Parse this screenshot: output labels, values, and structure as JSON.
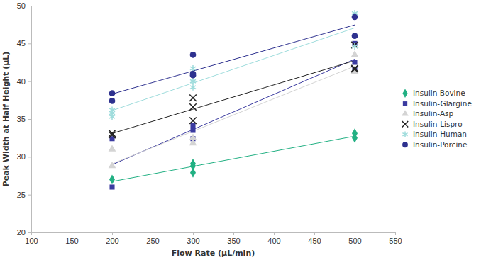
{
  "chart_data": {
    "type": "scatter",
    "x_label": "Flow Rate (µL/min)",
    "y_label": "Peak Width at Half Height (µL)",
    "xlim": [
      100,
      550
    ],
    "xticks": [
      100,
      150,
      200,
      250,
      300,
      350,
      400,
      450,
      500,
      550
    ],
    "ylim": [
      20,
      50
    ],
    "yticks": [
      20,
      25,
      30,
      35,
      40,
      45,
      50
    ],
    "grid": false,
    "legend": "right",
    "series": [
      {
        "name": "Insulin-Bovine",
        "color": "#22b083",
        "marker": "diamond",
        "line_style": "trend",
        "x": [
          200,
          300,
          300,
          300,
          500,
          500
        ],
        "values": [
          27.0,
          29.1,
          28.8,
          27.9,
          33.1,
          32.5
        ]
      },
      {
        "name": "Insulin-Glargine",
        "color": "#3b3ba0",
        "marker": "square",
        "line_style": "trend",
        "x": [
          200,
          200,
          300,
          300,
          300,
          500,
          500,
          500
        ],
        "values": [
          32.4,
          26.0,
          34.2,
          33.5,
          32.4,
          45.0,
          42.5,
          41.5
        ]
      },
      {
        "name": "Insulin-Asp",
        "color": "#d4d4d4",
        "marker": "triangle",
        "line_style": "trend",
        "x": [
          200,
          200,
          300,
          300,
          500,
          500
        ],
        "values": [
          31.0,
          28.8,
          32.5,
          31.8,
          43.5,
          41.3
        ]
      },
      {
        "name": "Insulin-Lispro",
        "color": "#222222",
        "marker": "x",
        "line_style": "trend",
        "x": [
          200,
          200,
          300,
          300,
          300,
          500,
          500,
          500
        ],
        "values": [
          33.1,
          32.9,
          37.8,
          36.6,
          34.8,
          44.8,
          41.7,
          41.6
        ]
      },
      {
        "name": "Insulin-Human",
        "color": "#9edcdc",
        "marker": "asterisk",
        "line_style": "trend",
        "x": [
          200,
          200,
          200,
          300,
          300,
          300,
          500,
          500
        ],
        "values": [
          36.2,
          35.8,
          35.3,
          41.7,
          40.0,
          39.2,
          49.0,
          44.6
        ]
      },
      {
        "name": "Insulin-Porcine",
        "color": "#2e318f",
        "marker": "circle",
        "line_style": "trend",
        "x": [
          200,
          200,
          300,
          300,
          300,
          500,
          500
        ],
        "values": [
          38.4,
          37.4,
          43.5,
          41.0,
          40.8,
          48.5,
          46.0
        ]
      }
    ]
  }
}
